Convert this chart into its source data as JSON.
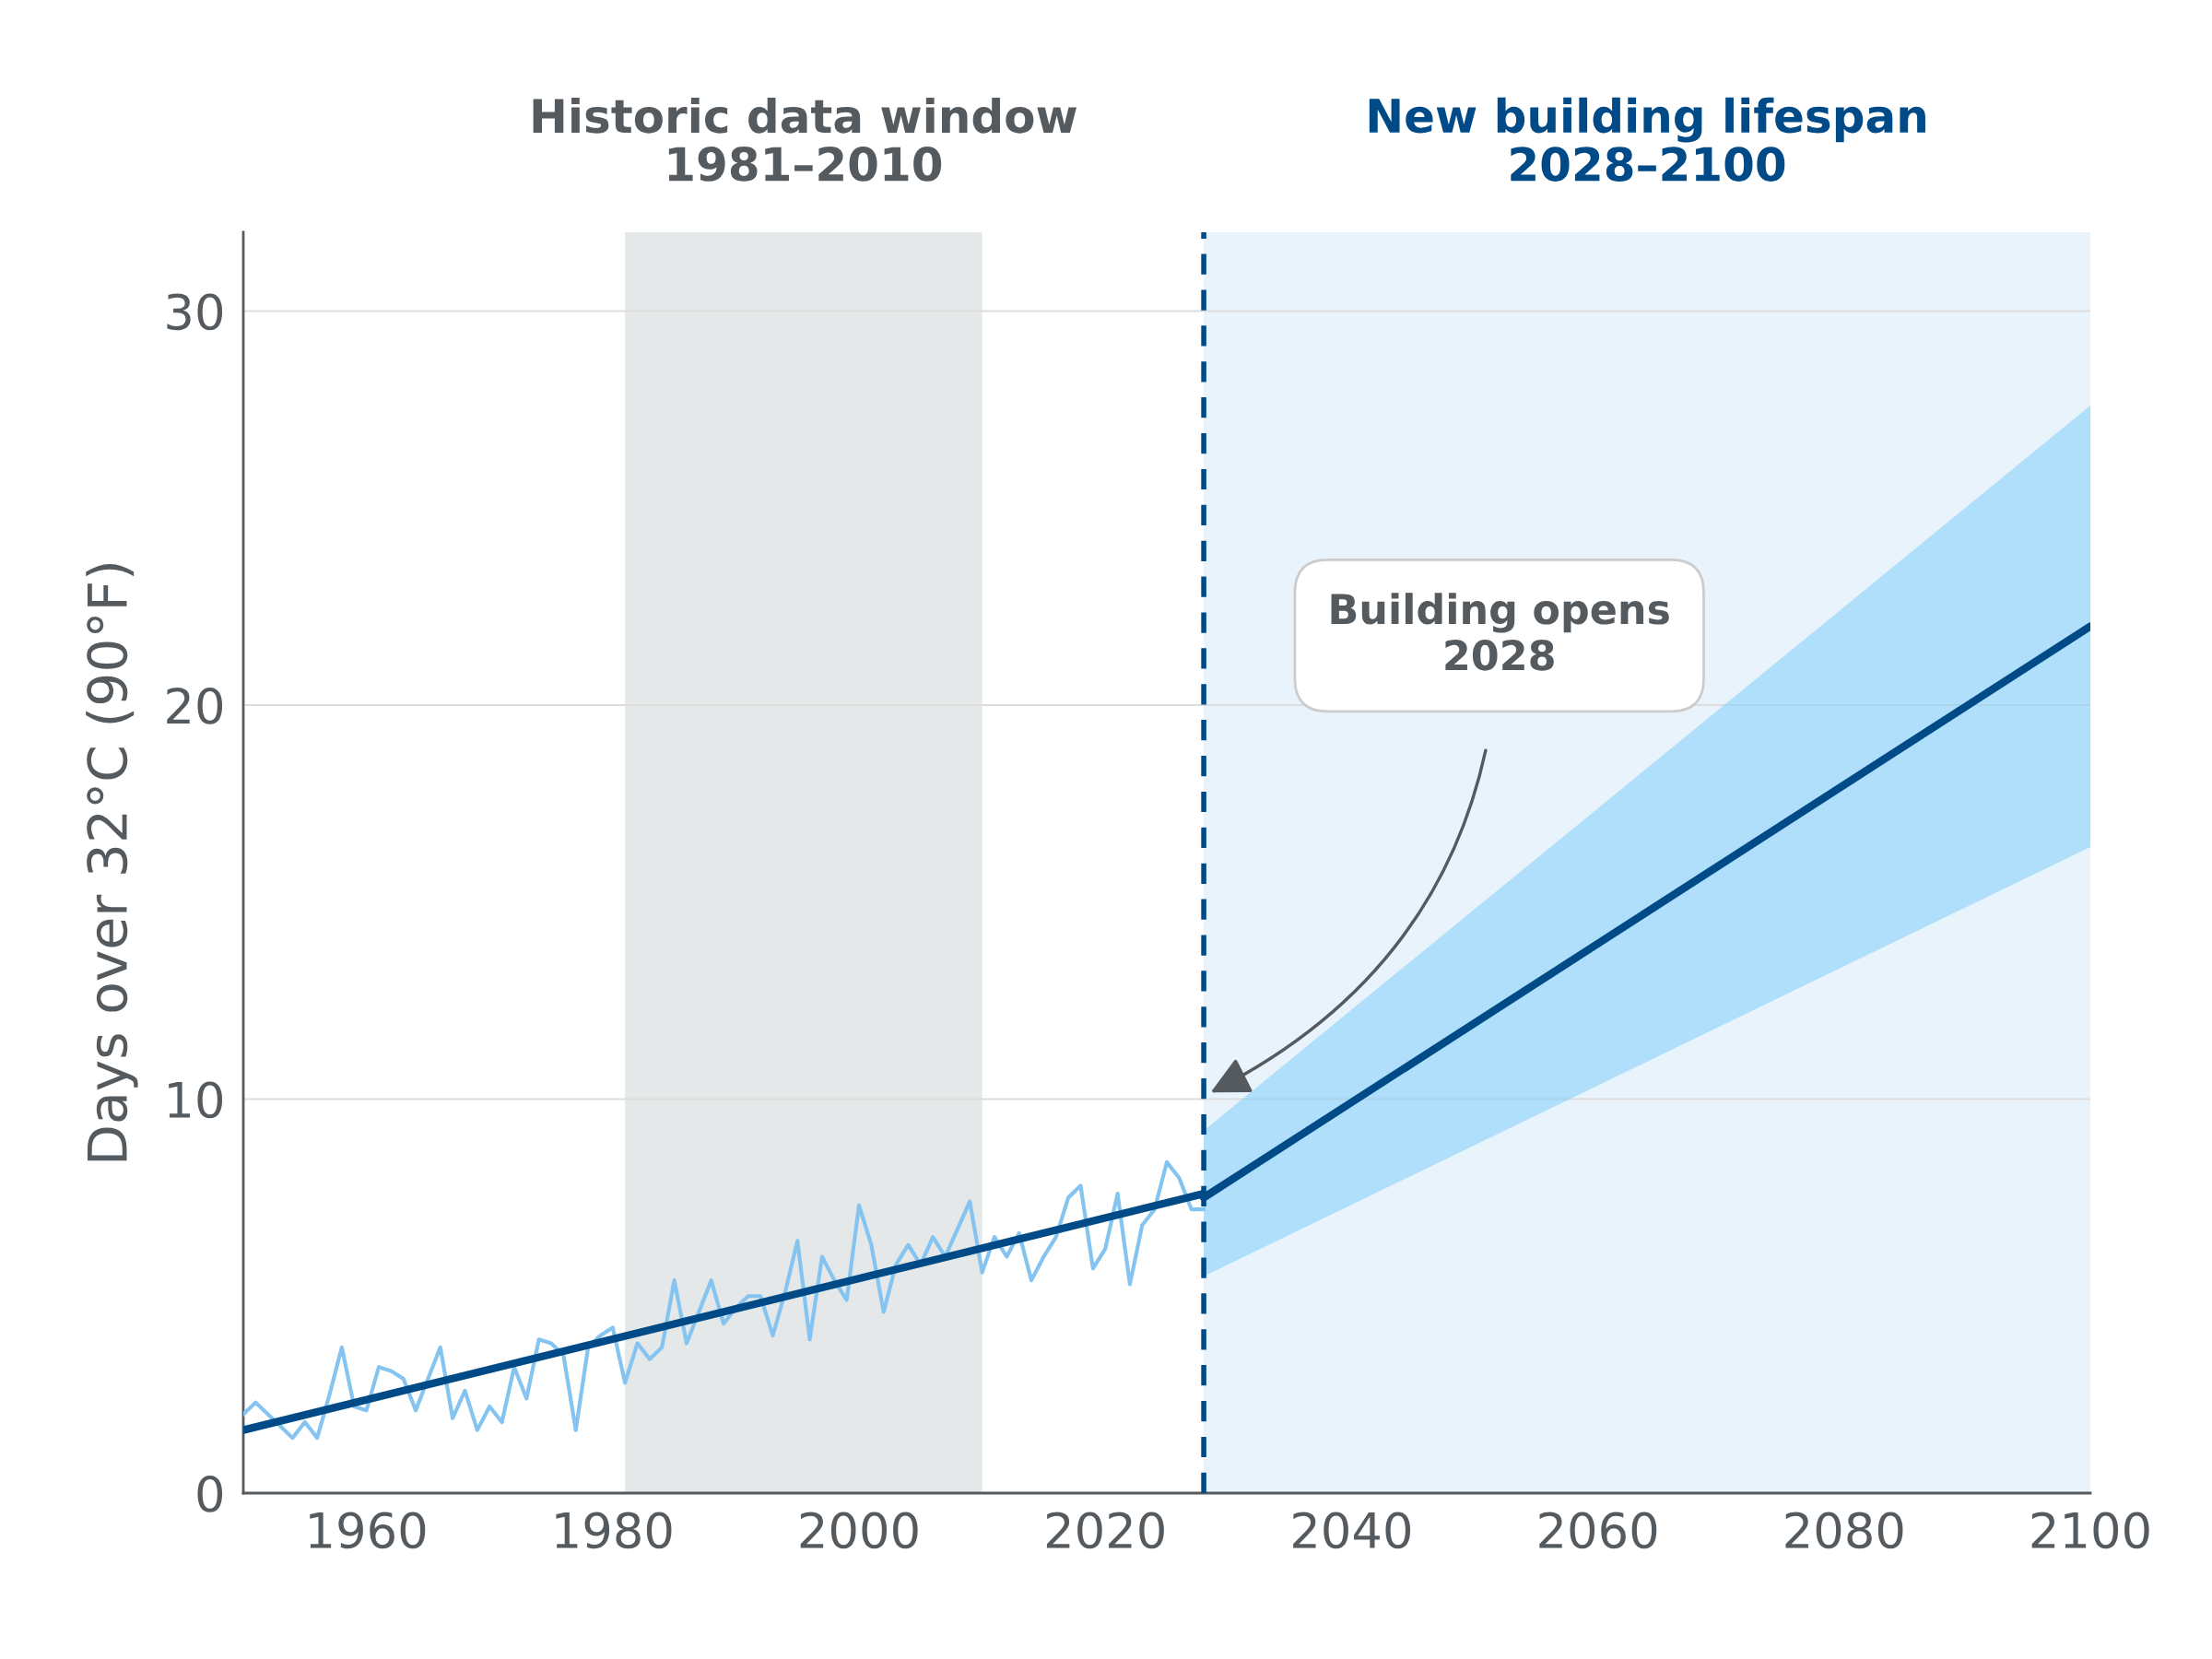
{
  "chart_data": {
    "type": "line",
    "ylabel": "Days over 32°C (90°F)",
    "xlim": [
      1950,
      2100
    ],
    "xticks": [
      1960,
      1980,
      2000,
      2020,
      2040,
      2060,
      2080,
      2100
    ],
    "ylim": [
      0,
      32
    ],
    "yticks": [
      0,
      10,
      20,
      30
    ],
    "grid": "y",
    "legend": false,
    "series": [
      {
        "color": "#85c4f0",
        "x": [
          1950,
          1951,
          1952,
          1953,
          1954,
          1955,
          1956,
          1957,
          1958,
          1959,
          1960,
          1961,
          1962,
          1963,
          1964,
          1965,
          1966,
          1967,
          1968,
          1969,
          1970,
          1971,
          1972,
          1973,
          1974,
          1975,
          1976,
          1977,
          1978,
          1979,
          1980,
          1981,
          1982,
          1983,
          1984,
          1985,
          1986,
          1987,
          1988,
          1989,
          1990,
          1991,
          1992,
          1993,
          1994,
          1995,
          1996,
          1997,
          1998,
          1999,
          2000,
          2001,
          2002,
          2003,
          2004,
          2005,
          2006,
          2007,
          2008,
          2009,
          2010,
          2011,
          2012,
          2013,
          2014,
          2015,
          2016,
          2017,
          2018,
          2019,
          2020,
          2021,
          2022,
          2023,
          2024,
          2025,
          2026,
          2027,
          2028
        ],
        "values": [
          2.0,
          2.3,
          2.0,
          1.7,
          1.4,
          1.8,
          1.4,
          2.5,
          3.7,
          2.2,
          2.1,
          3.2,
          3.1,
          2.9,
          2.1,
          2.9,
          3.7,
          1.9,
          2.6,
          1.6,
          2.2,
          1.8,
          3.2,
          2.4,
          3.9,
          3.8,
          3.5,
          1.6,
          3.7,
          4.0,
          4.2,
          2.8,
          3.8,
          3.4,
          3.7,
          5.4,
          3.8,
          4.6,
          5.4,
          4.3,
          4.7,
          5.0,
          5.0,
          4.0,
          5.1,
          6.4,
          3.9,
          6.0,
          5.4,
          4.9,
          7.3,
          6.3,
          4.6,
          5.8,
          6.3,
          5.8,
          6.5,
          6.0,
          6.7,
          7.4,
          5.6,
          6.5,
          6.0,
          6.6,
          5.4,
          6.0,
          6.5,
          7.5,
          7.8,
          5.7,
          6.2,
          7.6,
          5.3,
          6.8,
          7.2,
          8.4,
          8.0,
          7.2,
          7.2
        ]
      },
      {
        "color": "#004b87",
        "x": [
          1950,
          2028
        ],
        "values": [
          1.6,
          7.6
        ]
      },
      {
        "color": "#004b87",
        "x": [
          2028,
          2100
        ],
        "values": [
          7.5,
          22.0
        ],
        "lower": [
          5.5,
          16.4
        ],
        "upper": [
          9.2,
          27.6
        ]
      }
    ],
    "bands": [
      {
        "axis": "x",
        "from": 1981,
        "to": 2010,
        "label": "Historic data window\n1981–2010",
        "color": "#e4e8e9"
      },
      {
        "axis": "x",
        "from": 2028,
        "to": 2100,
        "label": "New building lifespan\n2028–2100",
        "color": "#e8f3fc"
      }
    ],
    "ref_lines": [
      {
        "axis": "x",
        "value": 2028,
        "color": "#004b87",
        "line_style": "dashed"
      }
    ],
    "annotations": [
      "Building opens\n2028"
    ]
  }
}
